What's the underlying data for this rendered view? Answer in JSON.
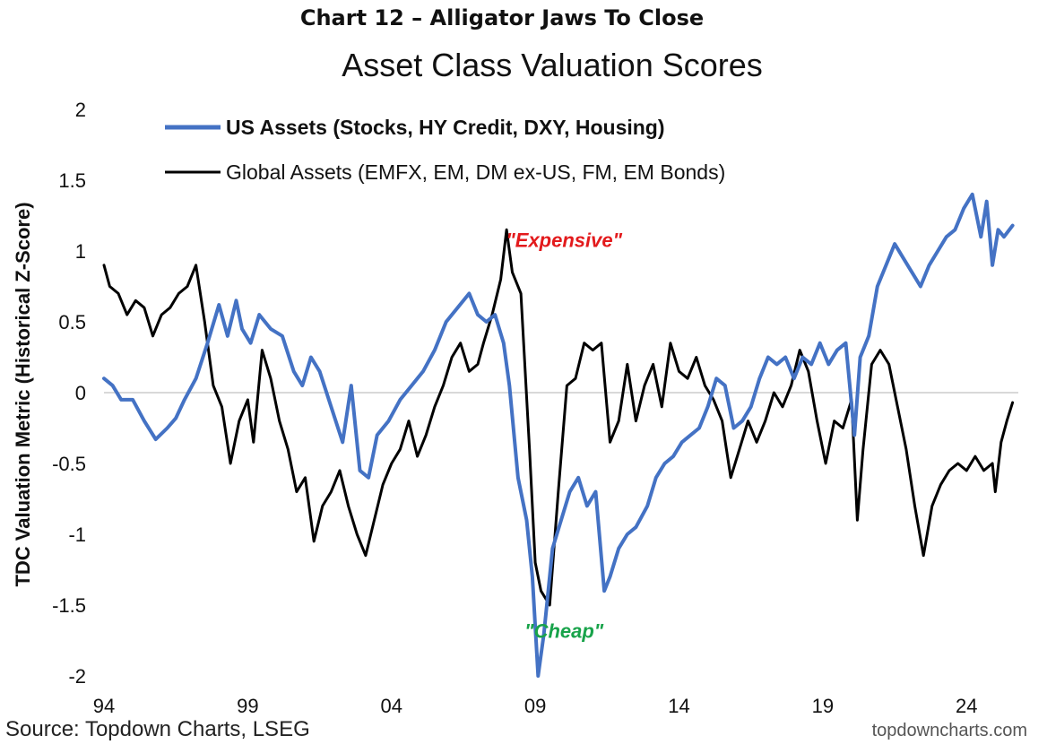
{
  "page": {
    "suptitle": "Chart 12 – Alligator Jaws To Close",
    "source": "Source: Topdown Charts, LSEG",
    "website": "topdowncharts.com"
  },
  "chart_data": {
    "type": "line",
    "title": "Asset Class Valuation Scores",
    "ylabel": "TDC Valuation Metric (Historical Z-Score)",
    "xlabel": "",
    "x_tick_labels": [
      "94",
      "99",
      "04",
      "09",
      "14",
      "19",
      "24"
    ],
    "y_tick_labels": [
      "2",
      "1.5",
      "1",
      "0.5",
      "0",
      "-0.5",
      "-1",
      "-1.5",
      "-2"
    ],
    "xlim": [
      1994.0,
      2025.8
    ],
    "ylim": [
      -2.0,
      2.0
    ],
    "grid": false,
    "zero_line": true,
    "legend_position": "top-left",
    "annotations": [
      {
        "text": "\"Expensive\"",
        "x": 2010.0,
        "y": 1.08,
        "color": "#e31a1c"
      },
      {
        "text": "\"Cheap\"",
        "x": 2010.0,
        "y": -1.68,
        "color": "#18a34a"
      }
    ],
    "series": [
      {
        "name": "US Assets (Stocks, HY Credit, DXY, Housing)",
        "color": "#4472c4",
        "bold_legend": true,
        "x": [
          1994.0,
          1994.3,
          1994.6,
          1995.0,
          1995.4,
          1995.8,
          1996.2,
          1996.5,
          1996.8,
          1997.2,
          1997.6,
          1998.0,
          1998.3,
          1998.6,
          1998.8,
          1999.1,
          1999.4,
          1999.8,
          2000.2,
          2000.6,
          2000.9,
          2001.2,
          2001.5,
          2001.9,
          2002.3,
          2002.6,
          2002.9,
          2003.2,
          2003.5,
          2003.9,
          2004.3,
          2004.7,
          2005.1,
          2005.5,
          2005.9,
          2006.3,
          2006.7,
          2007.0,
          2007.3,
          2007.6,
          2007.9,
          2008.1,
          2008.4,
          2008.7,
          2008.9,
          2009.1,
          2009.3,
          2009.6,
          2009.9,
          2010.2,
          2010.5,
          2010.8,
          2011.1,
          2011.4,
          2011.6,
          2011.9,
          2012.2,
          2012.5,
          2012.9,
          2013.2,
          2013.5,
          2013.8,
          2014.1,
          2014.4,
          2014.7,
          2015.0,
          2015.3,
          2015.6,
          2015.9,
          2016.2,
          2016.5,
          2016.8,
          2017.1,
          2017.4,
          2017.7,
          2018.0,
          2018.3,
          2018.6,
          2018.9,
          2019.2,
          2019.5,
          2019.8,
          2020.1,
          2020.3,
          2020.6,
          2020.9,
          2021.2,
          2021.5,
          2021.8,
          2022.1,
          2022.4,
          2022.7,
          2023.0,
          2023.3,
          2023.6,
          2023.9,
          2024.2,
          2024.5,
          2024.7,
          2024.9,
          2025.1,
          2025.3,
          2025.6
        ],
        "values": [
          0.1,
          0.05,
          -0.05,
          -0.05,
          -0.2,
          -0.33,
          -0.25,
          -0.18,
          -0.05,
          0.1,
          0.35,
          0.62,
          0.4,
          0.65,
          0.45,
          0.35,
          0.55,
          0.45,
          0.4,
          0.15,
          0.05,
          0.25,
          0.15,
          -0.1,
          -0.35,
          0.05,
          -0.55,
          -0.6,
          -0.3,
          -0.2,
          -0.05,
          0.05,
          0.15,
          0.3,
          0.5,
          0.6,
          0.7,
          0.55,
          0.5,
          0.55,
          0.35,
          0.05,
          -0.6,
          -0.9,
          -1.3,
          -2.0,
          -1.7,
          -1.1,
          -0.9,
          -0.7,
          -0.6,
          -0.8,
          -0.7,
          -1.4,
          -1.3,
          -1.1,
          -1.0,
          -0.95,
          -0.8,
          -0.6,
          -0.5,
          -0.45,
          -0.35,
          -0.3,
          -0.25,
          -0.1,
          0.1,
          0.05,
          -0.25,
          -0.2,
          -0.1,
          0.1,
          0.25,
          0.2,
          0.25,
          0.1,
          0.25,
          0.2,
          0.35,
          0.2,
          0.3,
          0.35,
          -0.3,
          0.25,
          0.4,
          0.75,
          0.9,
          1.05,
          0.95,
          0.85,
          0.75,
          0.9,
          1.0,
          1.1,
          1.15,
          1.3,
          1.4,
          1.1,
          1.35,
          0.9,
          1.15,
          1.1,
          1.18
        ]
      },
      {
        "name": "Global Assets (EMFX, EM, DM ex-US, FM, EM Bonds)",
        "color": "#000000",
        "bold_legend": false,
        "x": [
          1994.0,
          1994.2,
          1994.5,
          1994.8,
          1995.1,
          1995.4,
          1995.7,
          1996.0,
          1996.3,
          1996.6,
          1996.9,
          1997.2,
          1997.5,
          1997.8,
          1998.1,
          1998.4,
          1998.7,
          1999.0,
          1999.2,
          1999.5,
          1999.8,
          2000.1,
          2000.4,
          2000.7,
          2001.0,
          2001.3,
          2001.6,
          2001.9,
          2002.2,
          2002.5,
          2002.8,
          2003.1,
          2003.4,
          2003.7,
          2004.0,
          2004.3,
          2004.6,
          2004.9,
          2005.2,
          2005.5,
          2005.8,
          2006.1,
          2006.4,
          2006.7,
          2007.0,
          2007.2,
          2007.5,
          2007.8,
          2008.0,
          2008.2,
          2008.5,
          2008.8,
          2009.0,
          2009.2,
          2009.5,
          2009.8,
          2010.1,
          2010.4,
          2010.7,
          2011.0,
          2011.3,
          2011.6,
          2011.9,
          2012.2,
          2012.5,
          2012.8,
          2013.1,
          2013.4,
          2013.7,
          2014.0,
          2014.3,
          2014.6,
          2014.9,
          2015.2,
          2015.5,
          2015.8,
          2016.1,
          2016.4,
          2016.7,
          2017.0,
          2017.3,
          2017.6,
          2017.9,
          2018.2,
          2018.5,
          2018.8,
          2019.1,
          2019.4,
          2019.7,
          2020.0,
          2020.2,
          2020.4,
          2020.7,
          2021.0,
          2021.3,
          2021.6,
          2021.9,
          2022.2,
          2022.5,
          2022.8,
          2023.1,
          2023.4,
          2023.7,
          2024.0,
          2024.3,
          2024.6,
          2024.9,
          2025.0,
          2025.2,
          2025.4,
          2025.6
        ],
        "values": [
          0.9,
          0.75,
          0.7,
          0.55,
          0.65,
          0.6,
          0.4,
          0.55,
          0.6,
          0.7,
          0.75,
          0.9,
          0.5,
          0.05,
          -0.1,
          -0.5,
          -0.2,
          -0.05,
          -0.35,
          0.3,
          0.1,
          -0.2,
          -0.4,
          -0.7,
          -0.6,
          -1.05,
          -0.8,
          -0.7,
          -0.55,
          -0.8,
          -1.0,
          -1.15,
          -0.9,
          -0.65,
          -0.5,
          -0.4,
          -0.2,
          -0.45,
          -0.3,
          -0.1,
          0.05,
          0.25,
          0.35,
          0.15,
          0.2,
          0.35,
          0.55,
          0.8,
          1.15,
          0.85,
          0.7,
          -0.4,
          -1.2,
          -1.4,
          -1.5,
          -0.7,
          0.05,
          0.1,
          0.35,
          0.3,
          0.35,
          -0.35,
          -0.2,
          0.2,
          -0.2,
          0.05,
          0.2,
          -0.1,
          0.35,
          0.15,
          0.1,
          0.25,
          0.05,
          -0.05,
          -0.2,
          -0.6,
          -0.4,
          -0.2,
          -0.35,
          -0.2,
          0.0,
          -0.1,
          0.05,
          0.3,
          0.15,
          -0.2,
          -0.5,
          -0.2,
          -0.25,
          -0.05,
          -0.9,
          -0.4,
          0.2,
          0.3,
          0.2,
          -0.1,
          -0.4,
          -0.8,
          -1.15,
          -0.8,
          -0.65,
          -0.55,
          -0.5,
          -0.55,
          -0.45,
          -0.55,
          -0.5,
          -0.7,
          -0.35,
          -0.2,
          -0.07
        ]
      }
    ]
  }
}
